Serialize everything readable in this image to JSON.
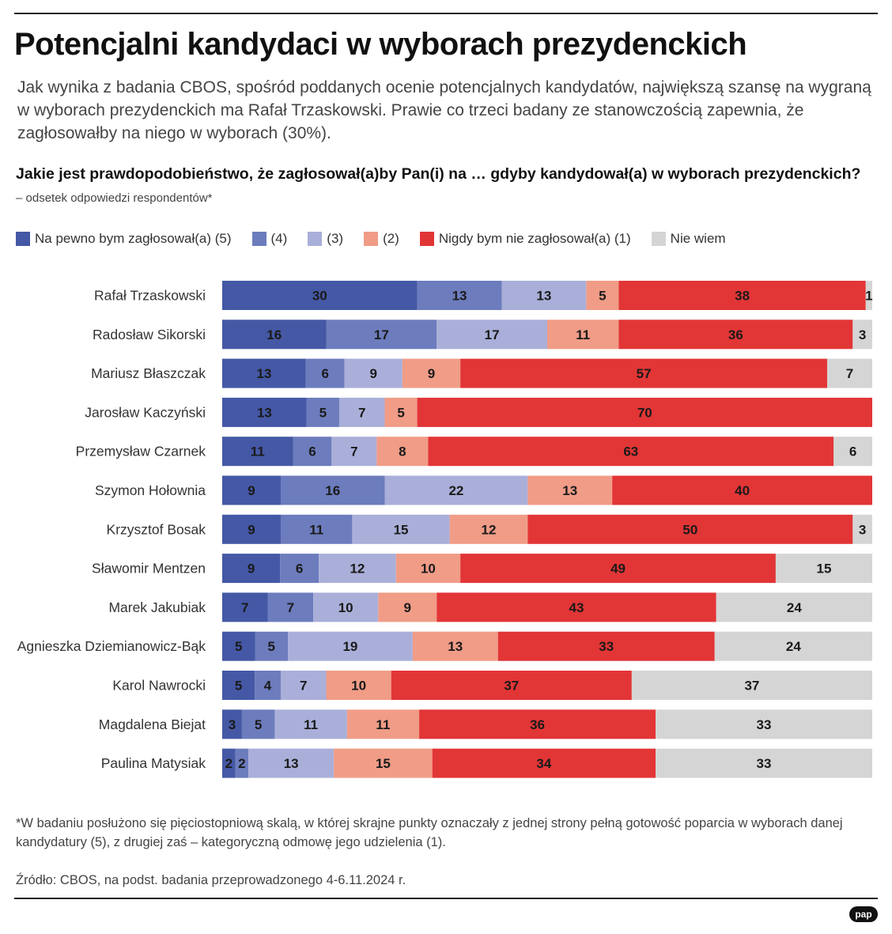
{
  "title": "Potencjalni kandydaci w wyborach prezydenckich",
  "intro": "Jak wynika z badania CBOS, spośród poddanych ocenie potencjalnych kandydatów, największą szansę na wygraną w wyborach prezydenckich ma Rafał Trzaskowski. Prawie co trzeci badany ze stanowczością zapewnia, że zagłosowałby na niego w wyborach (30%).",
  "question": {
    "text": "Jakie jest prawdopodobieństwo, że zagłosował(a)by Pan(i) na … gdyby kandydował(a) w wyborach prezydenckich?",
    "note": "– odsetek odpowiedzi respondentów*"
  },
  "footnote": "*W badaniu posłużono się pięciostopniową skalą, w której skrajne punkty oznaczały z jednej strony pełną gotowość poparcia w wyborach danej kandydatury (5), z drugiej zaś – kategoryczną odmowę jego udzielenia (1).",
  "source": "Źródło: CBOS, na podst. badania przeprowadzonego 4-6.11.2024 r.",
  "logo": "pap",
  "chart_data": {
    "type": "bar",
    "orientation": "horizontal",
    "stacked": true,
    "unit": "%",
    "categories": [
      "Rafał Trzaskowski",
      "Radosław Sikorski",
      "Mariusz Błaszczak",
      "Jarosław Kaczyński",
      "Przemysław Czarnek",
      "Szymon Hołownia",
      "Krzysztof Bosak",
      "Sławomir Mentzen",
      "Marek Jakubiak",
      "Agnieszka Dziemianowicz-Bąk",
      "Karol Nawrocki",
      "Magdalena Biejat",
      "Paulina Matysiak"
    ],
    "series": [
      {
        "name": "Na pewno bym zagłosował(a) (5)",
        "color": "#4458a5",
        "values": [
          30,
          16,
          13,
          13,
          11,
          9,
          9,
          9,
          7,
          5,
          5,
          3,
          2
        ]
      },
      {
        "name": "(4)",
        "color": "#6c7cbd",
        "values": [
          13,
          17,
          6,
          5,
          6,
          16,
          11,
          6,
          7,
          5,
          4,
          5,
          2
        ]
      },
      {
        "name": "(3)",
        "color": "#a9afd9",
        "values": [
          13,
          17,
          9,
          7,
          7,
          22,
          15,
          12,
          10,
          19,
          7,
          11,
          13
        ]
      },
      {
        "name": "(2)",
        "color": "#f09c87",
        "values": [
          5,
          11,
          9,
          5,
          8,
          13,
          12,
          10,
          9,
          13,
          10,
          11,
          15
        ]
      },
      {
        "name": "Nigdy bym nie zagłosował(a) (1)",
        "color": "#e23536",
        "values": [
          38,
          36,
          57,
          70,
          63,
          40,
          50,
          49,
          43,
          33,
          37,
          36,
          34
        ]
      },
      {
        "name": "Nie wiem",
        "color": "#d5d5d5",
        "values": [
          1,
          3,
          7,
          null,
          6,
          null,
          3,
          15,
          24,
          24,
          37,
          33,
          33
        ]
      }
    ],
    "xlim": [
      0,
      100
    ],
    "legend_position": "top"
  }
}
